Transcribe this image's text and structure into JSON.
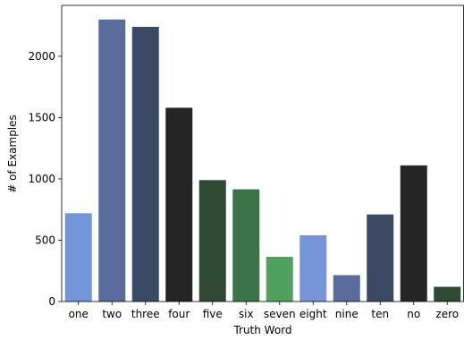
{
  "chart_data": {
    "type": "bar",
    "title": "",
    "xlabel": "Truth Word",
    "ylabel": "# of Examples",
    "categories": [
      "one",
      "two",
      "three",
      "four",
      "five",
      "six",
      "seven",
      "eight",
      "nine",
      "ten",
      "no",
      "zero"
    ],
    "values": [
      720,
      2300,
      2240,
      1580,
      990,
      915,
      365,
      540,
      215,
      710,
      1110,
      120
    ],
    "colors": [
      "#7595d8",
      "#5a6c9c",
      "#3a4a64",
      "#252525",
      "#2e4a34",
      "#3d7349",
      "#4fa05f",
      "#7595d8",
      "#5a6c9c",
      "#3a4a64",
      "#252525",
      "#2e4a34"
    ],
    "yticks": [
      0,
      500,
      1000,
      1500,
      2000
    ],
    "ylim": [
      0,
      2415
    ],
    "grid": false
  }
}
